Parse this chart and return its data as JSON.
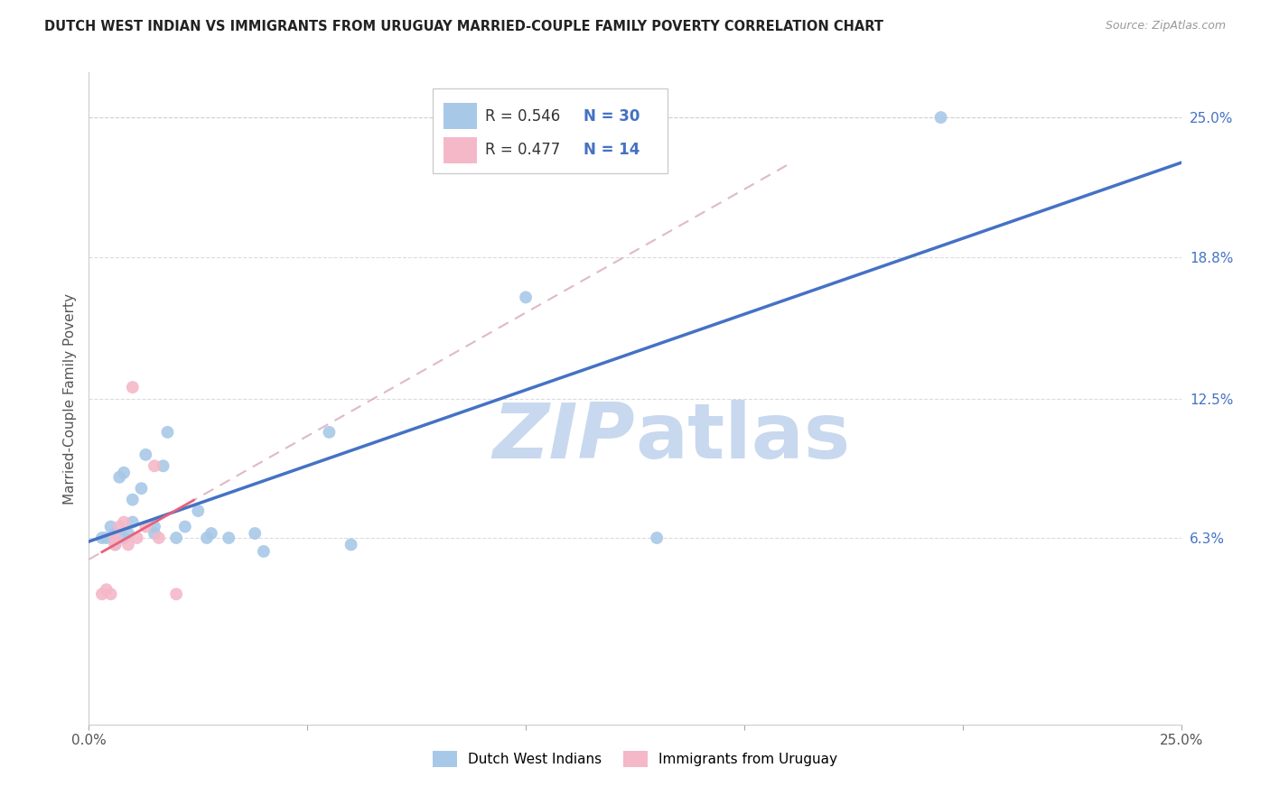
{
  "title": "DUTCH WEST INDIAN VS IMMIGRANTS FROM URUGUAY MARRIED-COUPLE FAMILY POVERTY CORRELATION CHART",
  "source": "Source: ZipAtlas.com",
  "ylabel": "Married-Couple Family Poverty",
  "x_min": 0.0,
  "x_max": 0.25,
  "y_min": -0.02,
  "y_max": 0.27,
  "x_ticks": [
    0.0,
    0.05,
    0.1,
    0.15,
    0.2,
    0.25
  ],
  "x_tick_labels": [
    "0.0%",
    "",
    "",
    "",
    "",
    "25.0%"
  ],
  "y_tick_labels_right": [
    "6.3%",
    "12.5%",
    "18.8%",
    "25.0%"
  ],
  "y_tick_positions_right": [
    0.063,
    0.125,
    0.188,
    0.25
  ],
  "legend_r1": "0.546",
  "legend_n1": "30",
  "legend_r2": "0.477",
  "legend_n2": "14",
  "blue_color": "#a8c8e8",
  "pink_color": "#f4b8c8",
  "blue_line_color": "#4472c4",
  "pink_line_color": "#e8607a",
  "dashed_line_color": "#d8a8b8",
  "watermark_color": "#c8d8ee",
  "grid_color": "#cccccc",
  "background_color": "#ffffff",
  "blue_scatter_x": [
    0.003,
    0.004,
    0.005,
    0.006,
    0.006,
    0.007,
    0.008,
    0.008,
    0.009,
    0.01,
    0.01,
    0.012,
    0.013,
    0.015,
    0.015,
    0.017,
    0.018,
    0.02,
    0.022,
    0.025,
    0.027,
    0.028,
    0.032,
    0.038,
    0.04,
    0.055,
    0.06,
    0.1,
    0.13,
    0.195
  ],
  "blue_scatter_y": [
    0.063,
    0.063,
    0.068,
    0.065,
    0.06,
    0.09,
    0.092,
    0.063,
    0.065,
    0.07,
    0.08,
    0.085,
    0.1,
    0.065,
    0.068,
    0.095,
    0.11,
    0.063,
    0.068,
    0.075,
    0.063,
    0.065,
    0.063,
    0.065,
    0.057,
    0.11,
    0.06,
    0.17,
    0.063,
    0.25
  ],
  "pink_scatter_x": [
    0.003,
    0.004,
    0.005,
    0.006,
    0.006,
    0.007,
    0.008,
    0.009,
    0.01,
    0.011,
    0.013,
    0.015,
    0.016,
    0.02
  ],
  "pink_scatter_y": [
    0.038,
    0.04,
    0.038,
    0.063,
    0.06,
    0.068,
    0.07,
    0.06,
    0.13,
    0.063,
    0.068,
    0.095,
    0.063,
    0.038
  ]
}
